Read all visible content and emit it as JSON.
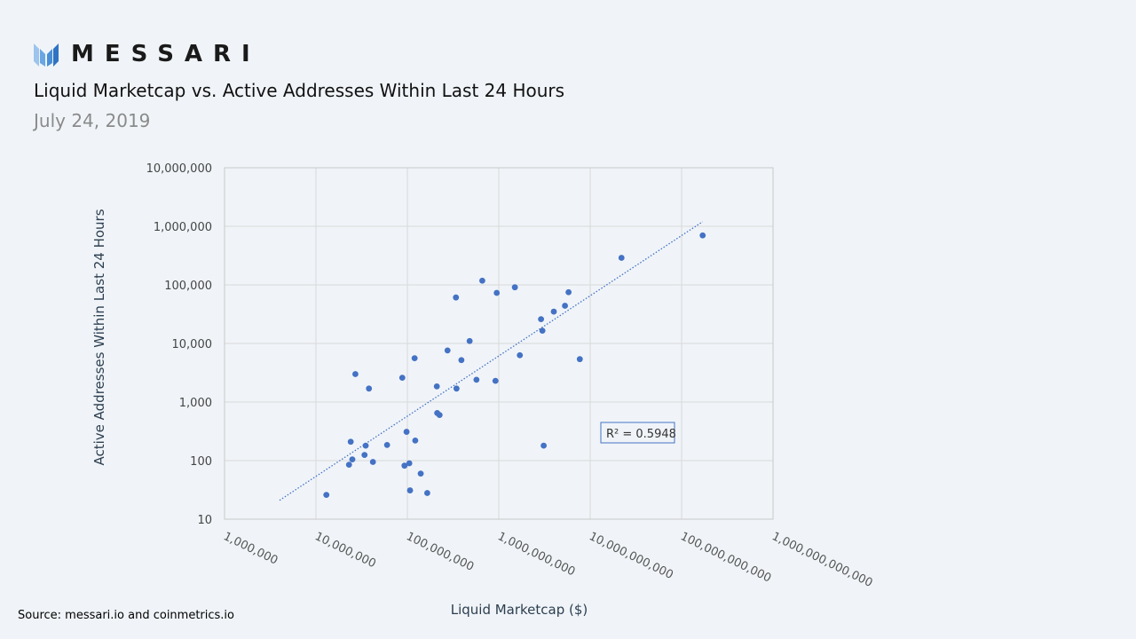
{
  "brand": {
    "name": "MESSARI",
    "logo_icon": "messari-logo-icon",
    "logo_color": "#4a8fd6"
  },
  "header": {
    "title": "Liquid Marketcap vs. Active Addresses Within Last 24 Hours",
    "date": "July 24, 2019"
  },
  "footer": {
    "source": "Source: messari.io and coinmetrics.io"
  },
  "chart_data": {
    "type": "scatter",
    "xlabel": "Liquid Marketcap ($)",
    "ylabel": "Active Addresses Within Last 24 Hours",
    "x_scale": "log",
    "y_scale": "log",
    "xlim": [
      1000000,
      1000000000000
    ],
    "ylim": [
      10,
      10000000
    ],
    "x_ticks": [
      1000000,
      10000000,
      100000000,
      1000000000,
      10000000000,
      100000000000,
      1000000000000
    ],
    "x_tick_labels": [
      "1,000,000",
      "10,000,000",
      "100,000,000",
      "1,000,000,000",
      "10,000,000,000",
      "100,000,000,000",
      "1,000,000,000,000"
    ],
    "y_ticks": [
      10,
      100,
      1000,
      10000,
      100000,
      1000000,
      10000000
    ],
    "y_tick_labels": [
      "10",
      "100",
      "1,000",
      "10,000",
      "100,000",
      "1,000,000",
      "10,000,000"
    ],
    "grid": true,
    "marker_color": "#4472c4",
    "trendline": {
      "type": "power",
      "color": "#4472c4",
      "style": "dotted",
      "x": [
        4000000,
        170000000000
      ],
      "y": [
        21,
        1200000
      ]
    },
    "annotation": "R² = 0.5948",
    "points": [
      [
        13000000,
        26
      ],
      [
        23000000,
        85
      ],
      [
        24000000,
        210
      ],
      [
        25000000,
        105
      ],
      [
        27000000,
        3000
      ],
      [
        34000000,
        125
      ],
      [
        35000000,
        180
      ],
      [
        38000000,
        1700
      ],
      [
        42000000,
        95
      ],
      [
        60000000,
        185
      ],
      [
        88000000,
        2600
      ],
      [
        93000000,
        82
      ],
      [
        98000000,
        310
      ],
      [
        105000000,
        90
      ],
      [
        107000000,
        31
      ],
      [
        120000000,
        5600
      ],
      [
        122000000,
        220
      ],
      [
        140000000,
        60
      ],
      [
        165000000,
        28
      ],
      [
        210000000,
        1850
      ],
      [
        212000000,
        650
      ],
      [
        225000000,
        600
      ],
      [
        275000000,
        7600
      ],
      [
        340000000,
        61000
      ],
      [
        345000000,
        1700
      ],
      [
        390000000,
        5200
      ],
      [
        480000000,
        11000
      ],
      [
        570000000,
        2400
      ],
      [
        660000000,
        118000
      ],
      [
        920000000,
        2300
      ],
      [
        950000000,
        73000
      ],
      [
        1500000000,
        91000
      ],
      [
        1700000000,
        6300
      ],
      [
        2900000000,
        26000
      ],
      [
        3000000000,
        16500
      ],
      [
        3100000000,
        180
      ],
      [
        4000000000,
        35000
      ],
      [
        5300000000,
        44000
      ],
      [
        5800000000,
        75000
      ],
      [
        7700000000,
        5400
      ],
      [
        22000000000,
        290000
      ],
      [
        170000000000,
        700000
      ]
    ]
  }
}
